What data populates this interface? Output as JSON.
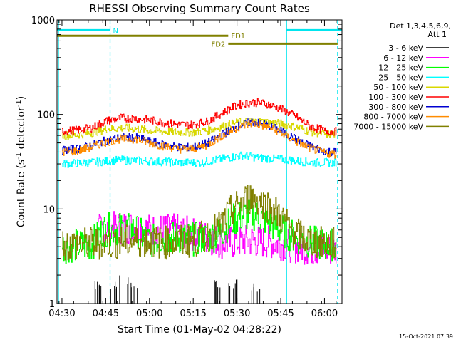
{
  "chart_data": {
    "type": "line",
    "title": "RHESSI Observing Summary Count Rates",
    "xlabel": "Start Time (01-May-02 04:28:22)",
    "ylabel_main": "Count Rate (s",
    "ylabel_sup1": "-1",
    "ylabel_mid": " detector",
    "ylabel_sup2": "-1",
    "ylabel_end": ")",
    "yscale": "log",
    "ylim": [
      1,
      1000
    ],
    "xlim_minutes": [
      -1.7,
      96
    ],
    "x_unit": "minutes after 04:30",
    "x_ticks": [
      {
        "label": "04:30",
        "t": 0
      },
      {
        "label": "04:45",
        "t": 15
      },
      {
        "label": "05:00",
        "t": 30
      },
      {
        "label": "05:15",
        "t": 45
      },
      {
        "label": "05:30",
        "t": 60
      },
      {
        "label": "05:45",
        "t": 75
      },
      {
        "label": "06:00",
        "t": 90
      }
    ],
    "y_ticks": [
      {
        "label": "1",
        "v": 1
      },
      {
        "label": "10",
        "v": 10
      },
      {
        "label": "100",
        "v": 100
      },
      {
        "label": "1000",
        "v": 1000
      }
    ],
    "legend": {
      "header1": "Det 1,3,4,5,6,9,",
      "header2": "Att 1",
      "entries": [
        {
          "label": "3 - 6 keV",
          "color": "#000000"
        },
        {
          "label": "6 - 12 keV",
          "color": "#ff00ff"
        },
        {
          "label": "12 - 25 keV",
          "color": "#00ff00"
        },
        {
          "label": "25 - 50 keV",
          "color": "#00ffff"
        },
        {
          "label": "50 - 100 keV",
          "color": "#d8d800"
        },
        {
          "label": "100 - 300 keV",
          "color": "#ff0000"
        },
        {
          "label": "300 - 800 keV",
          "color": "#0000d0"
        },
        {
          "label": "800 - 7000 keV",
          "color": "#ff8c00"
        },
        {
          "label": "7000 - 15000 keV",
          "color": "#808000"
        }
      ]
    },
    "series": [
      {
        "name": "3 - 6 keV",
        "color": "#000000",
        "style": "spikes",
        "base": 1,
        "points": [
          [
            13,
            1.8
          ],
          [
            18,
            2.0
          ],
          [
            24,
            1.9
          ],
          [
            54,
            1.8
          ],
          [
            59,
            2.0
          ],
          [
            66,
            1.7
          ]
        ]
      },
      {
        "name": "6 - 12 keV",
        "color": "#ff00ff",
        "points": [
          [
            12,
            5.8
          ],
          [
            15,
            6.2
          ],
          [
            25,
            6.5
          ],
          [
            30,
            6.0
          ],
          [
            35,
            6.0
          ],
          [
            40,
            5.9
          ],
          [
            45,
            5.4
          ],
          [
            50,
            5.0
          ],
          [
            55,
            4.4
          ],
          [
            60,
            4.5
          ],
          [
            65,
            4.6
          ],
          [
            70,
            4.5
          ],
          [
            75,
            4.3
          ],
          [
            80,
            4.0
          ],
          [
            85,
            3.8
          ],
          [
            90,
            3.7
          ],
          [
            94,
            3.7
          ]
        ]
      },
      {
        "name": "12 - 25 keV",
        "color": "#00ff00",
        "points": [
          [
            0,
            4.0
          ],
          [
            10,
            4.2
          ],
          [
            14,
            6.0
          ],
          [
            20,
            6.2
          ],
          [
            25,
            6.0
          ],
          [
            30,
            4.5
          ],
          [
            35,
            5.0
          ],
          [
            40,
            5.0
          ],
          [
            45,
            4.8
          ],
          [
            50,
            5.0
          ],
          [
            54,
            5.5
          ],
          [
            58,
            7.5
          ],
          [
            62,
            8.5
          ],
          [
            66,
            8.8
          ],
          [
            70,
            7.5
          ],
          [
            75,
            6.0
          ],
          [
            80,
            5.0
          ],
          [
            85,
            4.5
          ],
          [
            90,
            4.2
          ],
          [
            94,
            4.2
          ]
        ]
      },
      {
        "name": "25 - 50 keV",
        "color": "#00ffff",
        "points": [
          [
            0,
            30
          ],
          [
            10,
            31
          ],
          [
            20,
            33
          ],
          [
            30,
            32
          ],
          [
            40,
            31
          ],
          [
            48,
            31
          ],
          [
            55,
            34
          ],
          [
            62,
            37
          ],
          [
            67,
            35
          ],
          [
            72,
            34
          ],
          [
            78,
            33
          ],
          [
            85,
            31
          ],
          [
            94,
            31
          ]
        ]
      },
      {
        "name": "50 - 100 keV",
        "color": "#d8d800",
        "points": [
          [
            0,
            60
          ],
          [
            5,
            61
          ],
          [
            10,
            64
          ],
          [
            15,
            70
          ],
          [
            20,
            72
          ],
          [
            25,
            71
          ],
          [
            30,
            68
          ],
          [
            35,
            66
          ],
          [
            40,
            65
          ],
          [
            45,
            65
          ],
          [
            50,
            68
          ],
          [
            55,
            75
          ],
          [
            60,
            82
          ],
          [
            65,
            85
          ],
          [
            70,
            83
          ],
          [
            75,
            80
          ],
          [
            80,
            74
          ],
          [
            85,
            66
          ],
          [
            90,
            62
          ],
          [
            94,
            62
          ]
        ]
      },
      {
        "name": "100 - 300 keV",
        "color": "#ff0000",
        "points": [
          [
            0,
            67
          ],
          [
            5,
            68
          ],
          [
            10,
            72
          ],
          [
            15,
            85
          ],
          [
            20,
            92
          ],
          [
            25,
            91
          ],
          [
            30,
            87
          ],
          [
            35,
            82
          ],
          [
            40,
            78
          ],
          [
            45,
            78
          ],
          [
            50,
            85
          ],
          [
            55,
            105
          ],
          [
            60,
            125
          ],
          [
            65,
            135
          ],
          [
            70,
            130
          ],
          [
            75,
            115
          ],
          [
            80,
            95
          ],
          [
            85,
            75
          ],
          [
            90,
            67
          ],
          [
            94,
            66
          ]
        ]
      },
      {
        "name": "300 - 800 keV",
        "color": "#0000d0",
        "points": [
          [
            0,
            42
          ],
          [
            5,
            43
          ],
          [
            10,
            47
          ],
          [
            15,
            53
          ],
          [
            20,
            57
          ],
          [
            25,
            57
          ],
          [
            30,
            52
          ],
          [
            35,
            48
          ],
          [
            40,
            45
          ],
          [
            45,
            45
          ],
          [
            50,
            50
          ],
          [
            55,
            62
          ],
          [
            60,
            75
          ],
          [
            65,
            84
          ],
          [
            70,
            78
          ],
          [
            75,
            67
          ],
          [
            80,
            55
          ],
          [
            85,
            46
          ],
          [
            90,
            41
          ],
          [
            94,
            40
          ]
        ]
      },
      {
        "name": "800 - 7000 keV",
        "color": "#ff8c00",
        "points": [
          [
            0,
            40
          ],
          [
            5,
            41
          ],
          [
            10,
            45
          ],
          [
            15,
            51
          ],
          [
            20,
            55
          ],
          [
            25,
            55
          ],
          [
            30,
            50
          ],
          [
            35,
            46
          ],
          [
            40,
            43
          ],
          [
            45,
            43
          ],
          [
            50,
            48
          ],
          [
            55,
            60
          ],
          [
            60,
            73
          ],
          [
            65,
            81
          ],
          [
            70,
            75
          ],
          [
            75,
            64
          ],
          [
            80,
            52
          ],
          [
            85,
            44
          ],
          [
            90,
            39
          ],
          [
            94,
            38
          ]
        ]
      },
      {
        "name": "7000 - 15000 keV",
        "color": "#808000",
        "points": [
          [
            0,
            4.2
          ],
          [
            5,
            4.2
          ],
          [
            10,
            4.3
          ],
          [
            15,
            4.4
          ],
          [
            20,
            4.5
          ],
          [
            25,
            4.6
          ],
          [
            30,
            4.5
          ],
          [
            35,
            4.4
          ],
          [
            40,
            4.5
          ],
          [
            45,
            4.6
          ],
          [
            50,
            5.2
          ],
          [
            54,
            6.5
          ],
          [
            58,
            9.5
          ],
          [
            62,
            12
          ],
          [
            65,
            13.5
          ],
          [
            68,
            12
          ],
          [
            72,
            10
          ],
          [
            76,
            7.5
          ],
          [
            80,
            5.5
          ],
          [
            85,
            4.6
          ],
          [
            90,
            4.3
          ],
          [
            94,
            4.3
          ]
        ]
      }
    ],
    "flags": [
      {
        "label": "N",
        "color": "#00e5ee",
        "v": 780,
        "segments": [
          [
            -1.7,
            16.5
          ],
          [
            77,
            96
          ]
        ]
      },
      {
        "label": "FD1",
        "color": "#808000",
        "v": 680,
        "segments": [
          [
            -1.7,
            57
          ]
        ]
      },
      {
        "label": "FD2",
        "color": "#808000",
        "v": 560,
        "segments": [
          [
            57,
            94.5
          ]
        ]
      }
    ],
    "vlines": [
      {
        "t": -1.2,
        "style": "solid",
        "color": "#00e5ee"
      },
      {
        "t": 16.5,
        "style": "dashed",
        "color": "#00e5ee"
      },
      {
        "t": 77,
        "style": "solid",
        "color": "#00e5ee"
      },
      {
        "t": 94.5,
        "style": "dashed",
        "color": "#00e5ee"
      }
    ]
  },
  "footer": {
    "timestamp": "15-Oct-2021 07:39"
  }
}
